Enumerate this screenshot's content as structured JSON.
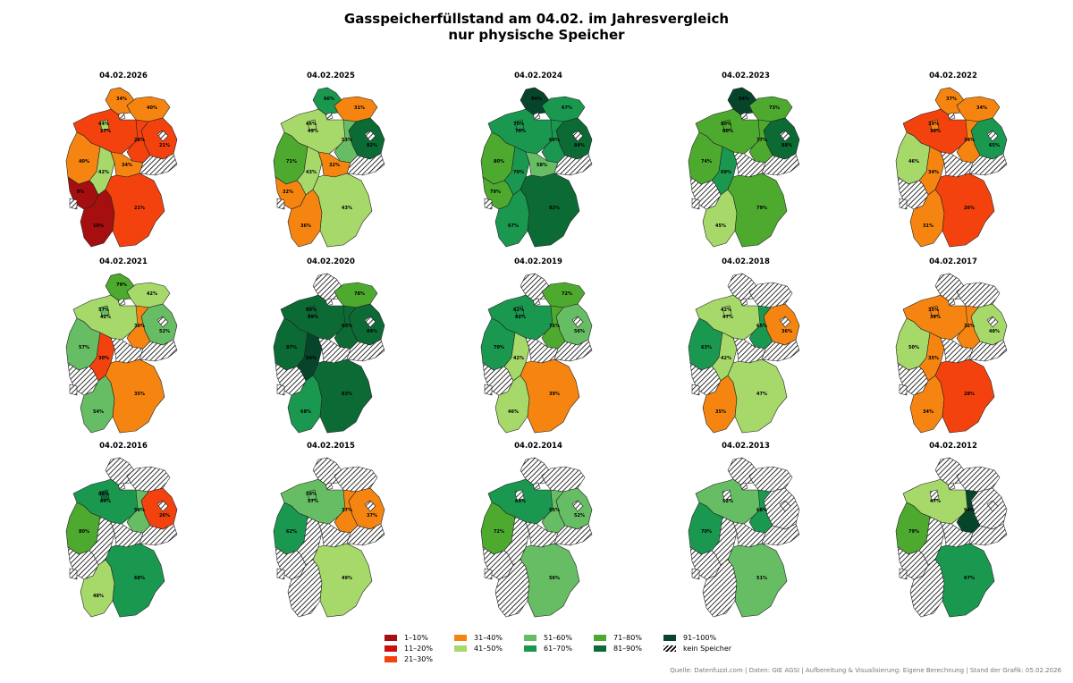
{
  "title_line1": "Gasspeicherfüllstand am 04.02. im Jahresvergleich",
  "title_line2": "nur physische Speicher",
  "source": "Quelle: Datenfuzzi.com | Daten: GIE AGSI | Aufbereitung & Visualisierung: Eigene Berechnung | Stand der Grafik: 05.02.2026",
  "legend": [
    {
      "label": "1–10%",
      "color": "#a50f0f"
    },
    {
      "label": "11–20%",
      "color": "#cc1010"
    },
    {
      "label": "21–30%",
      "color": "#f4420f"
    },
    {
      "label": "31–40%",
      "color": "#f58510"
    },
    {
      "label": "41–50%",
      "color": "#a6d96a"
    },
    {
      "label": "51–60%",
      "color": "#66bd63"
    },
    {
      "label": "61–70%",
      "color": "#1a9850"
    },
    {
      "label": "71–80%",
      "color": "#4daa2f"
    },
    {
      "label": "81–90%",
      "color": "#0c6b35"
    },
    {
      "label": "91–100%",
      "color": "#06452a"
    },
    {
      "label": "kein Speicher",
      "color": "hatch"
    }
  ],
  "regions": [
    "SH",
    "HH",
    "MV",
    "NI",
    "HB",
    "BB",
    "BE",
    "ST",
    "NW",
    "HE",
    "TH",
    "SN",
    "RP",
    "SL",
    "BW",
    "BY"
  ],
  "maps": [
    {
      "date": "04.02.2026",
      "values": {
        "SH": 34,
        "HH": null,
        "MV": 40,
        "NI": 27,
        "HB": 44,
        "BB": 21,
        "BE": null,
        "ST": 28,
        "NW": 40,
        "HE": 42,
        "TH": 34,
        "SN": null,
        "RP": 8,
        "SL": null,
        "BW": 10,
        "BY": 21
      },
      "labels": {
        "SH": "34%",
        "MV": "40%",
        "NI": "27%",
        "HB": "44%",
        "BB": "21%",
        "ST": "28%",
        "NW": "40%",
        "HE": "42%",
        "TH": "34%",
        "RP": "8%",
        "BW": "10%",
        "BY": "21%"
      }
    },
    {
      "date": "04.02.2025",
      "values": {
        "SH": 66,
        "HH": null,
        "MV": 31,
        "NI": 49,
        "HB": 46,
        "BB": 82,
        "BE": null,
        "ST": 53,
        "NW": 71,
        "HE": 43,
        "TH": 32,
        "SN": null,
        "RP": 32,
        "SL": null,
        "BW": 36,
        "BY": 43
      },
      "labels": {
        "SH": "66%",
        "MV": "31%",
        "NI": "49%",
        "HB": "46%",
        "BB": "82%",
        "ST": "53%",
        "NW": "71%",
        "HE": "43%",
        "TH": "32%",
        "RP": "32%",
        "BW": "36%",
        "BY": "43%"
      }
    },
    {
      "date": "04.02.2024",
      "values": {
        "SH": 94,
        "HH": null,
        "MV": 67,
        "NI": 70,
        "HB": 70,
        "BB": 84,
        "BE": null,
        "ST": 66,
        "NW": 80,
        "HE": 70,
        "TH": 58,
        "SN": null,
        "RP": 79,
        "SL": null,
        "BW": 67,
        "BY": 82
      },
      "labels": {
        "SH": "94%",
        "MV": "67%",
        "NI": "70%",
        "HB": "70%",
        "BB": "84%",
        "ST": "66%",
        "NW": "80%",
        "HE": "70%",
        "TH": "58%",
        "RP": "79%",
        "BW": "67%",
        "BY": "82%"
      }
    },
    {
      "date": "04.02.2023",
      "values": {
        "SH": 94,
        "HH": null,
        "MV": 73,
        "NI": 80,
        "HB": 80,
        "BB": 88,
        "BE": null,
        "ST": 77,
        "NW": 74,
        "HE": 69,
        "TH": null,
        "SN": null,
        "RP": null,
        "SL": null,
        "BW": 45,
        "BY": 79
      },
      "labels": {
        "SH": "94%",
        "MV": "73%",
        "NI": "80%",
        "HB": "80%",
        "BB": "88%",
        "ST": "77%",
        "NW": "74%",
        "HE": "69%",
        "BW": "45%",
        "BY": "79%"
      }
    },
    {
      "date": "04.02.2022",
      "values": {
        "SH": 37,
        "HH": null,
        "MV": 34,
        "NI": 30,
        "HB": 39,
        "BB": 65,
        "BE": null,
        "ST": 34,
        "NW": 46,
        "HE": 34,
        "TH": null,
        "SN": null,
        "RP": null,
        "SL": null,
        "BW": 31,
        "BY": 26
      },
      "labels": {
        "SH": "37%",
        "MV": "34%",
        "NI": "30%",
        "HB": "39%",
        "BB": "65%",
        "ST": "34%",
        "NW": "46%",
        "HE": "34%",
        "BW": "31%",
        "BY": "26%"
      }
    },
    {
      "date": "04.02.2021",
      "values": {
        "SH": 79,
        "HH": null,
        "MV": 42,
        "NI": 42,
        "HB": 57,
        "BB": 52,
        "BE": null,
        "ST": 39,
        "NW": 57,
        "HE": 30,
        "TH": null,
        "SN": null,
        "RP": null,
        "SL": null,
        "BW": 54,
        "BY": 35
      },
      "labels": {
        "SH": "79%",
        "MV": "42%",
        "NI": "42%",
        "HB": "57%",
        "BB": "52%",
        "ST": "39%",
        "NW": "57%",
        "HE": "30%",
        "BW": "54%",
        "BY": "35%"
      }
    },
    {
      "date": "04.02.2020",
      "values": {
        "SH": null,
        "HH": null,
        "MV": 78,
        "NI": 89,
        "HB": 89,
        "BB": 84,
        "BE": null,
        "ST": 83,
        "NW": 87,
        "HE": 94,
        "TH": null,
        "SN": null,
        "RP": null,
        "SL": null,
        "BW": 68,
        "BY": 83
      },
      "labels": {
        "MV": "78%",
        "NI": "89%",
        "HB": "89%",
        "BB": "84%",
        "ST": "83%",
        "NW": "87%",
        "HE": "94%",
        "BW": "68%",
        "BY": "83%"
      }
    },
    {
      "date": "04.02.2019",
      "values": {
        "SH": null,
        "HH": null,
        "MV": 72,
        "NI": 62,
        "HB": 62,
        "BB": 56,
        "BE": null,
        "ST": 71,
        "NW": 70,
        "HE": 42,
        "TH": null,
        "SN": null,
        "RP": null,
        "SL": null,
        "BW": 46,
        "BY": 39
      },
      "labels": {
        "MV": "72%",
        "NI": "62%",
        "HB": "62%",
        "BB": "56%",
        "ST": "71%",
        "NW": "70%",
        "HE": "42%",
        "BW": "46%",
        "BY": "39%"
      }
    },
    {
      "date": "04.02.2018",
      "values": {
        "SH": null,
        "HH": null,
        "MV": null,
        "NI": 47,
        "HB": 42,
        "BB": 36,
        "BE": null,
        "ST": 65,
        "NW": 63,
        "HE": 42,
        "TH": null,
        "SN": null,
        "RP": null,
        "SL": null,
        "BW": 35,
        "BY": 47
      },
      "labels": {
        "NI": "47%",
        "HB": "42%",
        "BB": "36%",
        "ST": "65%",
        "NW": "63%",
        "HE": "42%",
        "BW": "35%",
        "BY": "47%"
      }
    },
    {
      "date": "04.02.2017",
      "values": {
        "SH": null,
        "HH": null,
        "MV": null,
        "NI": 39,
        "HB": 35,
        "BB": 48,
        "BE": null,
        "ST": 32,
        "NW": 50,
        "HE": 35,
        "TH": null,
        "SN": null,
        "RP": null,
        "SL": null,
        "BW": 34,
        "BY": 28
      },
      "labels": {
        "NI": "39%",
        "HB": "35%",
        "BB": "48%",
        "ST": "32%",
        "NW": "50%",
        "HE": "35%",
        "BW": "34%",
        "BY": "28%"
      }
    },
    {
      "date": "04.02.2016",
      "values": {
        "SH": null,
        "HH": null,
        "MV": null,
        "NI": 64,
        "HB": 86,
        "BB": 26,
        "BE": null,
        "ST": 59,
        "NW": 80,
        "HE": null,
        "TH": null,
        "SN": null,
        "RP": null,
        "SL": null,
        "BW": 48,
        "BY": 68
      },
      "labels": {
        "NI": "64%",
        "HB": "86%",
        "BB": "26%",
        "ST": "59%",
        "NW": "80%",
        "BW": "48%",
        "BY": "68%"
      }
    },
    {
      "date": "04.02.2015",
      "values": {
        "SH": null,
        "HH": null,
        "MV": null,
        "NI": 57,
        "HB": 59,
        "BB": 37,
        "BE": null,
        "ST": 37,
        "NW": 62,
        "HE": null,
        "TH": null,
        "SN": null,
        "RP": null,
        "SL": null,
        "BW": null,
        "BY": 49
      },
      "labels": {
        "NI": "57%",
        "HB": "59%",
        "BB": "37%",
        "ST": "37%",
        "NW": "62%",
        "BY": "49%"
      }
    },
    {
      "date": "04.02.2014",
      "values": {
        "SH": null,
        "HH": null,
        "MV": null,
        "NI": 63,
        "HB": null,
        "BB": 52,
        "BE": null,
        "ST": 55,
        "NW": 72,
        "HE": null,
        "TH": null,
        "SN": null,
        "RP": null,
        "SL": null,
        "BW": null,
        "BY": 56
      },
      "labels": {
        "NI": "63%",
        "BB": "52%",
        "ST": "55%",
        "NW": "72%",
        "BY": "56%"
      }
    },
    {
      "date": "04.02.2013",
      "values": {
        "SH": null,
        "HH": null,
        "MV": null,
        "NI": 52,
        "HB": null,
        "BB": null,
        "BE": null,
        "ST": 68,
        "NW": 70,
        "HE": null,
        "TH": null,
        "SN": null,
        "RP": null,
        "SL": null,
        "BW": null,
        "BY": 51
      },
      "labels": {
        "NI": "52%",
        "ST": "68%",
        "NW": "70%",
        "BY": "51%"
      }
    },
    {
      "date": "04.02.2012",
      "values": {
        "SH": null,
        "HH": null,
        "MV": null,
        "NI": 47,
        "HB": null,
        "BB": null,
        "BE": null,
        "ST": 94,
        "NW": 79,
        "HE": null,
        "TH": null,
        "SN": null,
        "RP": null,
        "SL": null,
        "BW": null,
        "BY": 67
      },
      "labels": {
        "NI": "47%",
        "ST": "94%",
        "NW": "79%",
        "BY": "67%"
      }
    }
  ]
}
